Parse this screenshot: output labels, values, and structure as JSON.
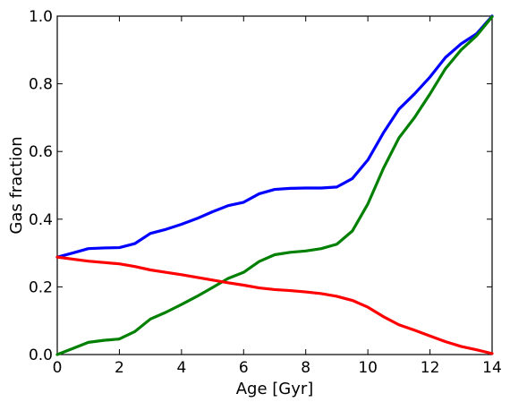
{
  "chart_data": {
    "type": "line",
    "title": "",
    "xlabel": "Age [Gyr]",
    "ylabel": "Gas fraction",
    "xlim": [
      0,
      14
    ],
    "ylim": [
      0,
      1.0
    ],
    "xticks": [
      "0",
      "2",
      "4",
      "6",
      "8",
      "10",
      "12",
      "14"
    ],
    "yticks": [
      "0.0",
      "0.2",
      "0.4",
      "0.6",
      "0.8",
      "1.0"
    ],
    "grid": false,
    "legend": "none",
    "series": [
      {
        "color": "#0000ff",
        "x": [
          0,
          0.5,
          1,
          1.5,
          2,
          2.5,
          3,
          3.5,
          4,
          4.5,
          5,
          5.5,
          6,
          6.5,
          7,
          7.5,
          8,
          8.5,
          9,
          9.5,
          10,
          10.5,
          11,
          11.5,
          12,
          12.5,
          13,
          13.5,
          14
        ],
        "y": [
          0.288,
          0.3,
          0.313,
          0.315,
          0.316,
          0.328,
          0.358,
          0.37,
          0.385,
          0.402,
          0.422,
          0.44,
          0.45,
          0.475,
          0.488,
          0.491,
          0.492,
          0.492,
          0.495,
          0.52,
          0.575,
          0.655,
          0.725,
          0.77,
          0.82,
          0.878,
          0.918,
          0.948,
          1.0
        ]
      },
      {
        "color": "#008000",
        "x": [
          0,
          0.5,
          1,
          1.5,
          2,
          2.5,
          3,
          3.5,
          4,
          4.5,
          5,
          5.5,
          6,
          6.5,
          7,
          7.5,
          8,
          8.5,
          9,
          9.5,
          10,
          10.5,
          11,
          11.5,
          12,
          12.5,
          13,
          13.5,
          14
        ],
        "y": [
          0.0,
          0.018,
          0.036,
          0.042,
          0.046,
          0.068,
          0.105,
          0.125,
          0.148,
          0.172,
          0.198,
          0.225,
          0.243,
          0.275,
          0.295,
          0.302,
          0.306,
          0.313,
          0.326,
          0.365,
          0.445,
          0.55,
          0.64,
          0.7,
          0.77,
          0.845,
          0.9,
          0.942,
          0.998
        ]
      },
      {
        "color": "#ff0000",
        "x": [
          0,
          0.5,
          1,
          1.5,
          2,
          2.5,
          3,
          3.5,
          4,
          4.5,
          5,
          5.5,
          6,
          6.5,
          7,
          7.5,
          8,
          8.5,
          9,
          9.5,
          10,
          10.5,
          11,
          11.5,
          12,
          12.5,
          13,
          13.5,
          14
        ],
        "y": [
          0.288,
          0.282,
          0.276,
          0.272,
          0.268,
          0.26,
          0.25,
          0.243,
          0.236,
          0.228,
          0.22,
          0.212,
          0.205,
          0.197,
          0.192,
          0.189,
          0.185,
          0.18,
          0.172,
          0.16,
          0.14,
          0.112,
          0.088,
          0.072,
          0.055,
          0.038,
          0.024,
          0.014,
          0.003
        ]
      }
    ]
  }
}
